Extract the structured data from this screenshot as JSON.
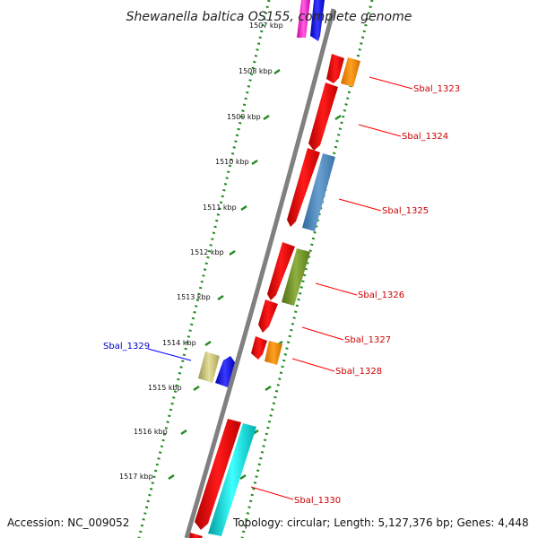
{
  "title": "Shewanella baltica OS155, complete genome",
  "ticks": [
    "1507 kbp",
    "1508 kbp",
    "1509 kbp",
    "1510 kbp",
    "1511 kbp",
    "1512 kbp",
    "1513 kbp",
    "1514 kbp",
    "1515 kbp",
    "1516 kbp",
    "1517 kbp"
  ],
  "genes": [
    {
      "label": "Sbal_1323",
      "color": "#cc0000"
    },
    {
      "label": "Sbal_1324",
      "color": "#cc0000"
    },
    {
      "label": "Sbal_1325",
      "color": "#cc0000"
    },
    {
      "label": "Sbal_1326",
      "color": "#cc0000"
    },
    {
      "label": "Sbal_1327",
      "color": "#cc0000"
    },
    {
      "label": "Sbal_1328",
      "color": "#cc0000"
    },
    {
      "label": "Sbal_1329",
      "color": "#0000cc"
    },
    {
      "label": "Sbal_1330",
      "color": "#cc0000"
    }
  ],
  "footer": {
    "accession": "Accession: NC_009052",
    "topology": "Topology: circular; Length: 5,127,376 bp; Genes: 4,448"
  },
  "colors": {
    "backbone": "#808080",
    "dots": "#228B22",
    "red": "#ff0000",
    "orange": "#ff8c00",
    "steelblue": "#4682b4",
    "olive": "#6b8e23",
    "khaki": "#bdb76b",
    "blue": "#0000ff",
    "cyan": "#00cccc",
    "magenta": "#ff00cc"
  }
}
